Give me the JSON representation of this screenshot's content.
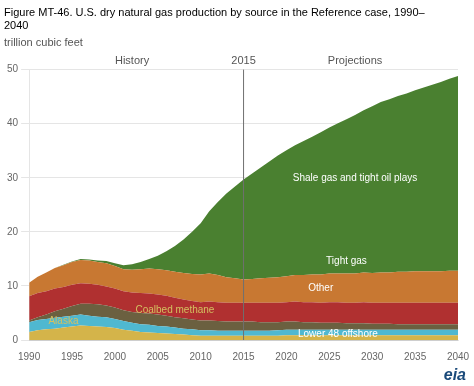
{
  "chart_data": {
    "type": "area",
    "title": [
      "Figure MT-46. U.S. dry natural gas production by source in the Reference case, 1990–",
      "2040"
    ],
    "ylabel": "trillion cubic feet",
    "stacked": true,
    "grid": true,
    "xlim": [
      1990,
      2040
    ],
    "xticks": [
      1990,
      1995,
      2000,
      2005,
      2010,
      2015,
      2020,
      2025,
      2030,
      2035,
      2040
    ],
    "ylim": [
      0,
      50
    ],
    "yticks": [
      0,
      10,
      20,
      30,
      40,
      50
    ],
    "x": [
      1990,
      1991,
      1992,
      1993,
      1994,
      1995,
      1996,
      1997,
      1998,
      1999,
      2000,
      2001,
      2002,
      2003,
      2004,
      2005,
      2006,
      2007,
      2008,
      2009,
      2010,
      2011,
      2012,
      2013,
      2014,
      2015,
      2016,
      2017,
      2018,
      2019,
      2020,
      2021,
      2022,
      2023,
      2024,
      2025,
      2026,
      2027,
      2028,
      2029,
      2030,
      2031,
      2032,
      2033,
      2034,
      2035,
      2036,
      2037,
      2038,
      2039,
      2040
    ],
    "series": [
      {
        "name": "Lower 48 offshore",
        "color": "#d4b44a",
        "values": [
          1.5,
          1.8,
          2.0,
          2.1,
          2.3,
          2.5,
          2.7,
          2.6,
          2.5,
          2.4,
          2.2,
          1.9,
          1.7,
          1.5,
          1.4,
          1.3,
          1.2,
          1.1,
          1.0,
          0.9,
          0.8,
          0.8,
          0.8,
          0.8,
          0.8,
          0.8,
          0.8,
          0.8,
          0.8,
          0.8,
          0.9,
          0.9,
          0.9,
          0.9,
          0.9,
          0.9,
          0.9,
          0.9,
          0.9,
          0.9,
          0.9,
          0.9,
          0.9,
          0.9,
          0.9,
          0.9,
          0.9,
          0.9,
          0.9,
          0.9,
          0.9
        ]
      },
      {
        "name": "Alaska",
        "color": "#4fb8d0",
        "values": [
          1.8,
          1.9,
          1.9,
          2.0,
          2.0,
          2.0,
          2.0,
          1.9,
          1.8,
          1.8,
          1.7,
          1.6,
          1.5,
          1.4,
          1.4,
          1.3,
          1.3,
          1.2,
          1.1,
          1.1,
          1.0,
          1.0,
          0.9,
          0.9,
          0.9,
          0.9,
          0.9,
          0.9,
          0.9,
          1.0,
          1.0,
          1.0,
          1.0,
          1.0,
          1.0,
          1.0,
          1.0,
          1.0,
          1.0,
          1.0,
          1.0,
          1.0,
          1.0,
          1.0,
          1.0,
          1.0,
          1.0,
          1.0,
          1.0,
          1.0,
          1.0
        ]
      },
      {
        "name": "Coalbed methane",
        "color": "#6b6040",
        "values": [
          0.3,
          0.5,
          0.8,
          1.2,
          1.5,
          1.8,
          2.0,
          2.2,
          2.3,
          2.2,
          2.1,
          2.0,
          2.0,
          2.1,
          2.1,
          2.1,
          2.0,
          1.9,
          1.9,
          1.8,
          1.8,
          1.8,
          1.8,
          1.7,
          1.7,
          1.7,
          1.7,
          1.6,
          1.6,
          1.5,
          1.5,
          1.5,
          1.4,
          1.4,
          1.3,
          1.3,
          1.3,
          1.2,
          1.2,
          1.2,
          1.1,
          1.1,
          1.1,
          1.0,
          1.0,
          1.0,
          1.0,
          1.0,
          1.0,
          1.0,
          1.0
        ]
      },
      {
        "name": "Other",
        "color": "#b03030",
        "values": [
          4.5,
          4.5,
          4.3,
          4.2,
          4.0,
          3.9,
          3.8,
          3.7,
          3.6,
          3.5,
          3.5,
          3.5,
          3.6,
          3.7,
          3.7,
          3.7,
          3.7,
          3.6,
          3.5,
          3.4,
          3.4,
          3.5,
          3.5,
          3.5,
          3.5,
          3.5,
          3.5,
          3.6,
          3.6,
          3.6,
          3.6,
          3.7,
          3.7,
          3.7,
          3.7,
          3.8,
          3.8,
          3.8,
          3.8,
          3.9,
          3.9,
          3.9,
          3.9,
          4.0,
          4.0,
          4.0,
          4.0,
          4.0,
          4.0,
          4.0,
          4.0
        ]
      },
      {
        "name": "Tight gas",
        "color": "#c87832",
        "values": [
          2.5,
          3.0,
          3.5,
          3.8,
          4.0,
          4.2,
          4.3,
          4.3,
          4.2,
          4.3,
          4.2,
          4.1,
          4.2,
          4.4,
          4.6,
          4.7,
          4.7,
          4.8,
          4.9,
          5.0,
          5.1,
          5.2,
          5.0,
          4.7,
          4.5,
          4.3,
          4.4,
          4.5,
          4.6,
          4.7,
          4.8,
          4.9,
          5.0,
          5.1,
          5.2,
          5.3,
          5.3,
          5.4,
          5.4,
          5.5,
          5.5,
          5.6,
          5.6,
          5.7,
          5.7,
          5.8,
          5.8,
          5.8,
          5.8,
          5.9,
          5.9
        ]
      },
      {
        "name": "Shale gas and tight oil plays",
        "color": "#4a8030",
        "values": [
          0.0,
          0.0,
          0.0,
          0.0,
          0.1,
          0.1,
          0.2,
          0.2,
          0.3,
          0.4,
          0.5,
          0.7,
          1.0,
          1.3,
          1.8,
          2.5,
          3.5,
          4.8,
          6.2,
          7.8,
          9.5,
          11.5,
          13.5,
          15.5,
          17.0,
          18.5,
          19.5,
          20.5,
          21.5,
          22.5,
          23.3,
          24.0,
          24.8,
          25.5,
          26.3,
          27.0,
          27.8,
          28.5,
          29.3,
          30.0,
          30.8,
          31.5,
          32.0,
          32.5,
          33.0,
          33.5,
          34.0,
          34.5,
          35.0,
          35.5,
          36.0
        ]
      }
    ],
    "annotations": [
      {
        "text": "History",
        "x": 2002
      },
      {
        "text": "2015",
        "x": 2015,
        "marker": "vline"
      },
      {
        "text": "Projections",
        "x": 2028
      },
      {
        "text": "Shale gas and tight oil plays",
        "x": 2028,
        "y": 30,
        "color": "#ffffff"
      },
      {
        "text": "Tight gas",
        "x": 2027,
        "y": 14.5,
        "color": "#ffffff"
      },
      {
        "text": "Other",
        "x": 2024,
        "y": 9.5,
        "color": "#ffffff"
      },
      {
        "text": "Lower 48 offshore",
        "x": 2026,
        "y": 1.0,
        "color": "#ffffff"
      },
      {
        "text": "Alaska",
        "x": 1994,
        "y": 3.5,
        "color": "#d4c060"
      },
      {
        "text": "Coalbed methane",
        "x": 2007,
        "y": 5.5,
        "color": "#d4c060"
      },
      {
        "text": "eia",
        "color": "#1a4a7a"
      }
    ]
  }
}
